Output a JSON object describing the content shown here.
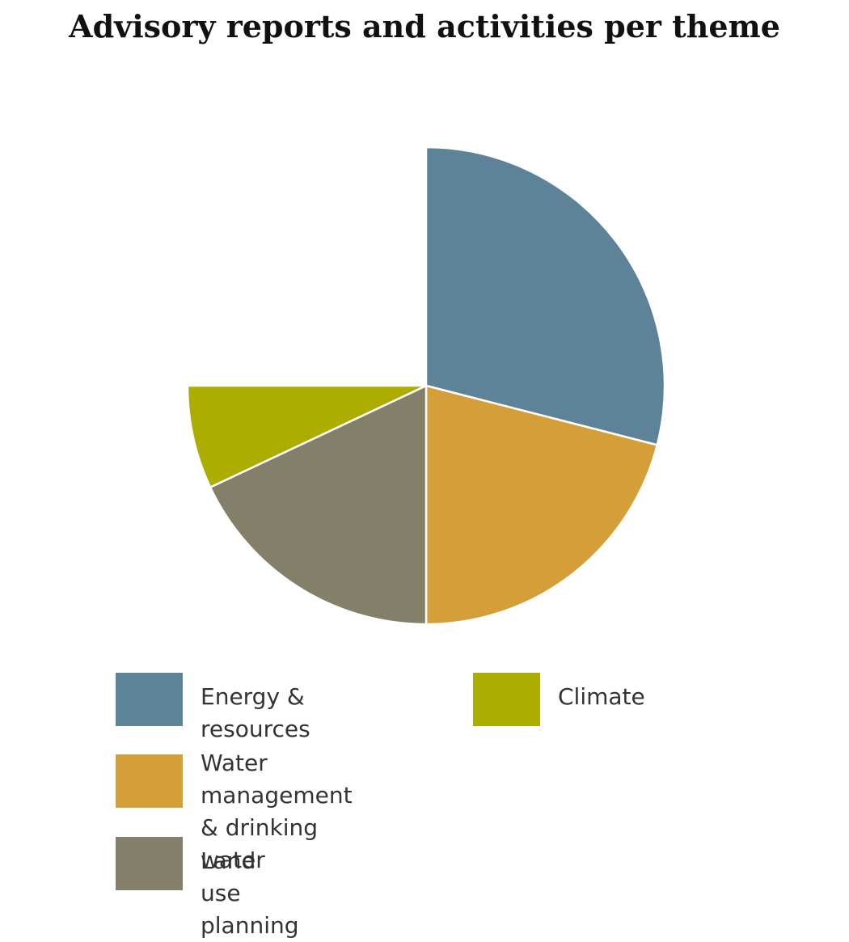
{
  "chart_data": {
    "type": "pie",
    "title": "Advisory reports and activities per theme",
    "start_angle_deg": 0,
    "slices": [
      {
        "label": "Energy & resources",
        "value": 29,
        "color": "#5e8399"
      },
      {
        "label": "Water management\n& drinking water",
        "value": 21,
        "color": "#d49f38"
      },
      {
        "label": "Land use planning",
        "value": 18,
        "color": "#837f69"
      },
      {
        "label": "Climate",
        "value": 7,
        "color": "#adad00"
      }
    ],
    "total_for_full_circle": 100,
    "legend": "bottom"
  }
}
